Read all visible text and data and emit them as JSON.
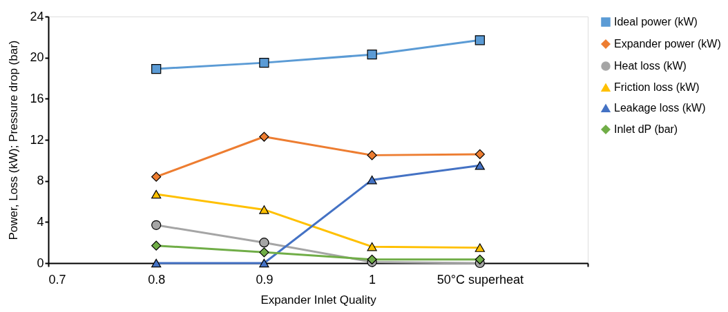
{
  "chart_data": {
    "type": "line",
    "xlabel": "Expander Inlet Quality",
    "ylabel": "Power, Loss (kW); Pressure drop (bar)",
    "categories": [
      "0.7",
      "0.8",
      "0.9",
      "1",
      "50°C superheat"
    ],
    "ylim": [
      0,
      24
    ],
    "yticks": [
      0,
      4,
      8,
      12,
      16,
      20,
      24
    ],
    "grid": false,
    "legend": "right",
    "series": [
      {
        "name": "Ideal power (kW)",
        "color": "#5b9bd5",
        "marker": "square",
        "values": [
          null,
          18.9,
          19.5,
          20.3,
          21.7
        ]
      },
      {
        "name": "Expander power (kW)",
        "color": "#ed7d31",
        "marker": "diamond",
        "values": [
          null,
          8.4,
          12.3,
          10.5,
          10.6
        ]
      },
      {
        "name": "Heat loss (kW)",
        "color": "#a5a5a5",
        "marker": "circle",
        "values": [
          null,
          3.7,
          2.0,
          0.1,
          0.0
        ]
      },
      {
        "name": "Friction loss (kW)",
        "color": "#ffc000",
        "marker": "triangle",
        "values": [
          null,
          6.7,
          5.2,
          1.6,
          1.5
        ]
      },
      {
        "name": "Leakage loss (kW)",
        "color": "#4472c4",
        "marker": "triangle",
        "values": [
          null,
          0,
          0,
          8.1,
          9.5
        ]
      },
      {
        "name": "Inlet dP (bar)",
        "color": "#70ad47",
        "marker": "diamond",
        "values": [
          null,
          1.7,
          1.05,
          0.35,
          0.35
        ]
      }
    ]
  }
}
